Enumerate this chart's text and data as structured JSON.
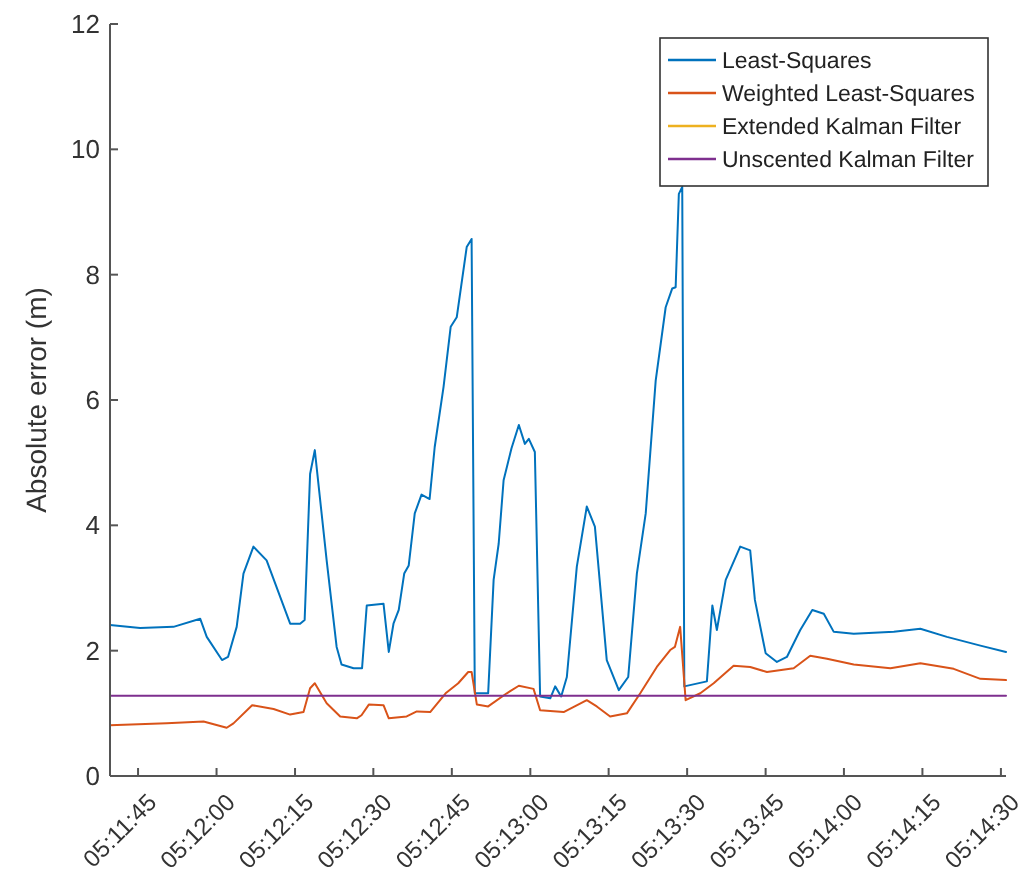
{
  "chart_data": {
    "type": "line",
    "ylabel": "Absolute error (m)",
    "xlim": [
      5.19434,
      5.24194
    ],
    "ylim": [
      0,
      12
    ],
    "yticks": [
      0,
      2,
      4,
      6,
      8,
      10,
      12
    ],
    "xticks": [
      {
        "value": 5.19583,
        "label": "05:11:45"
      },
      {
        "value": 5.2,
        "label": "05:12:00"
      },
      {
        "value": 5.20417,
        "label": "05:12:15"
      },
      {
        "value": 5.20833,
        "label": "05:12:30"
      },
      {
        "value": 5.2125,
        "label": "05:12:45"
      },
      {
        "value": 5.21667,
        "label": "05:13:00"
      },
      {
        "value": 5.22083,
        "label": "05:13:15"
      },
      {
        "value": 5.225,
        "label": "05:13:30"
      },
      {
        "value": 5.22917,
        "label": "05:13:45"
      },
      {
        "value": 5.23333,
        "label": "05:14:00"
      },
      {
        "value": 5.2375,
        "label": "05:14:15"
      },
      {
        "value": 5.24167,
        "label": "05:14:30"
      }
    ],
    "grid": false,
    "legend": "top right",
    "line_style": "solid",
    "marker": "none",
    "series": [
      {
        "name": "Least-Squares",
        "color": "#0072bd",
        "x": [
          5.19434,
          5.19594,
          5.19771,
          5.19913,
          5.19948,
          5.20029,
          5.20061,
          5.20107,
          5.20143,
          5.20196,
          5.20266,
          5.20391,
          5.20444,
          5.20468,
          5.20497,
          5.20522,
          5.20585,
          5.20638,
          5.20664,
          5.20728,
          5.20773,
          5.20798,
          5.20887,
          5.20915,
          5.2094,
          5.20968,
          5.20997,
          5.21021,
          5.21053,
          5.21089,
          5.21132,
          5.21159,
          5.21206,
          5.21244,
          5.21276,
          5.21329,
          5.21355,
          5.21372,
          5.21443,
          5.21472,
          5.21499,
          5.21525,
          5.21567,
          5.21606,
          5.21638,
          5.21659,
          5.21691,
          5.21719,
          5.21773,
          5.21799,
          5.21831,
          5.21861,
          5.21914,
          5.21967,
          5.2201,
          5.22073,
          5.22137,
          5.22187,
          5.22233,
          5.2228,
          5.22333,
          5.22386,
          5.22421,
          5.22439,
          5.22456,
          5.22474,
          5.22485,
          5.22605,
          5.22634,
          5.22658,
          5.22705,
          5.22782,
          5.22835,
          5.2286,
          5.22917,
          5.22977,
          5.2303,
          5.23101,
          5.23165,
          5.23226,
          5.23279,
          5.23385,
          5.23598,
          5.23739,
          5.2388,
          5.24058,
          5.24194
        ],
        "values": [
          2.41,
          2.36,
          2.38,
          2.51,
          2.22,
          1.85,
          1.9,
          2.38,
          3.23,
          3.66,
          3.44,
          2.43,
          2.43,
          2.49,
          4.82,
          5.2,
          3.44,
          2.06,
          1.78,
          1.72,
          1.72,
          2.72,
          2.75,
          1.98,
          2.43,
          2.65,
          3.23,
          3.36,
          4.19,
          4.49,
          4.42,
          5.25,
          6.21,
          7.17,
          7.32,
          8.44,
          8.57,
          1.32,
          1.32,
          3.13,
          3.71,
          4.72,
          5.23,
          5.6,
          5.3,
          5.38,
          5.17,
          1.27,
          1.24,
          1.43,
          1.27,
          1.58,
          3.34,
          4.3,
          3.98,
          1.85,
          1.37,
          1.58,
          3.23,
          4.19,
          6.31,
          7.48,
          7.78,
          7.8,
          9.29,
          9.4,
          1.43,
          1.51,
          2.72,
          2.33,
          3.13,
          3.66,
          3.6,
          2.81,
          1.96,
          1.82,
          1.9,
          2.33,
          2.65,
          2.59,
          2.3,
          2.27,
          2.3,
          2.35,
          2.22,
          2.08,
          1.98
        ]
      },
      {
        "name": "Weighted Least-Squares",
        "color": "#d95319",
        "x": [
          5.19434,
          5.19735,
          5.19931,
          5.20054,
          5.2009,
          5.20189,
          5.20303,
          5.20391,
          5.20462,
          5.20497,
          5.20522,
          5.20585,
          5.20657,
          5.20745,
          5.2077,
          5.20809,
          5.20887,
          5.20915,
          5.2101,
          5.21064,
          5.21135,
          5.21217,
          5.21284,
          5.21337,
          5.21355,
          5.21383,
          5.21443,
          5.21542,
          5.21606,
          5.21684,
          5.21719,
          5.21844,
          5.21967,
          5.2202,
          5.22091,
          5.2218,
          5.22251,
          5.22339,
          5.2241,
          5.22435,
          5.22463,
          5.22492,
          5.2257,
          5.22641,
          5.22747,
          5.22835,
          5.22924,
          5.23066,
          5.23154,
          5.23243,
          5.23385,
          5.2358,
          5.23739,
          5.23916,
          5.24058,
          5.24194
        ],
        "values": [
          0.81,
          0.84,
          0.87,
          0.77,
          0.84,
          1.13,
          1.07,
          0.98,
          1.02,
          1.4,
          1.48,
          1.16,
          0.95,
          0.92,
          0.97,
          1.14,
          1.13,
          0.92,
          0.95,
          1.03,
          1.02,
          1.32,
          1.48,
          1.66,
          1.66,
          1.14,
          1.11,
          1.32,
          1.44,
          1.39,
          1.05,
          1.02,
          1.21,
          1.11,
          0.95,
          1.0,
          1.32,
          1.74,
          2.01,
          2.06,
          2.38,
          1.21,
          1.32,
          1.48,
          1.76,
          1.74,
          1.66,
          1.72,
          1.92,
          1.87,
          1.78,
          1.72,
          1.8,
          1.71,
          1.55,
          1.53
        ]
      },
      {
        "name": "Extended Kalman Filter",
        "color": "#edb120"
      },
      {
        "name": "Unscented Kalman Filter",
        "color": "#7e2f8e",
        "x": [
          5.19434,
          5.24194
        ],
        "values": [
          1.28,
          1.28
        ]
      }
    ]
  }
}
